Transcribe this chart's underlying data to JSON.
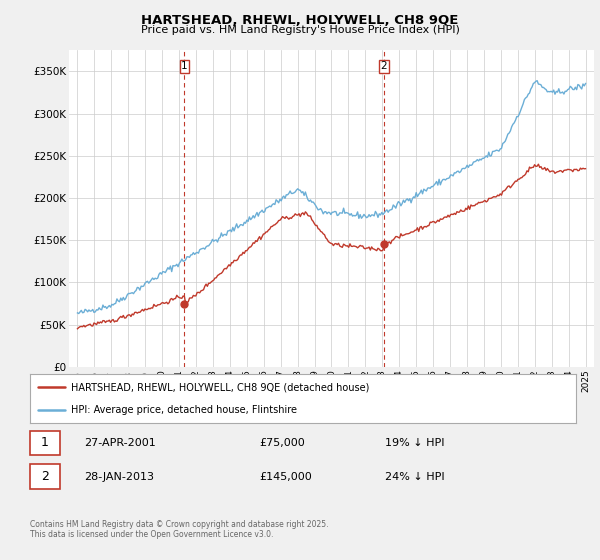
{
  "title": "HARTSHEAD, RHEWL, HOLYWELL, CH8 9QE",
  "subtitle": "Price paid vs. HM Land Registry's House Price Index (HPI)",
  "legend_line1": "HARTSHEAD, RHEWL, HOLYWELL, CH8 9QE (detached house)",
  "legend_line2": "HPI: Average price, detached house, Flintshire",
  "footnote": "Contains HM Land Registry data © Crown copyright and database right 2025.\nThis data is licensed under the Open Government Licence v3.0.",
  "sale1_label": "1",
  "sale1_date": "27-APR-2001",
  "sale1_price": "£75,000",
  "sale1_hpi": "19% ↓ HPI",
  "sale2_label": "2",
  "sale2_date": "28-JAN-2013",
  "sale2_price": "£145,000",
  "sale2_hpi": "24% ↓ HPI",
  "vline1_x": 2001.32,
  "vline2_x": 2013.08,
  "sale1_x": 2001.32,
  "sale1_y": 75000,
  "sale2_x": 2013.08,
  "sale2_y": 145000,
  "hpi_color": "#6baed6",
  "price_color": "#c0392b",
  "vline_color": "#c0392b",
  "background_color": "#f0f0f0",
  "plot_bg_color": "#ffffff",
  "ylim": [
    0,
    375000
  ],
  "xlim": [
    1994.5,
    2025.5
  ],
  "yticks": [
    0,
    50000,
    100000,
    150000,
    200000,
    250000,
    300000,
    350000
  ],
  "ytick_labels": [
    "£0",
    "£50K",
    "£100K",
    "£150K",
    "£200K",
    "£250K",
    "£300K",
    "£350K"
  ],
  "xticks": [
    1995,
    1996,
    1997,
    1998,
    1999,
    2000,
    2001,
    2002,
    2003,
    2004,
    2005,
    2006,
    2007,
    2008,
    2009,
    2010,
    2011,
    2012,
    2013,
    2014,
    2015,
    2016,
    2017,
    2018,
    2019,
    2020,
    2021,
    2022,
    2023,
    2024,
    2025
  ]
}
